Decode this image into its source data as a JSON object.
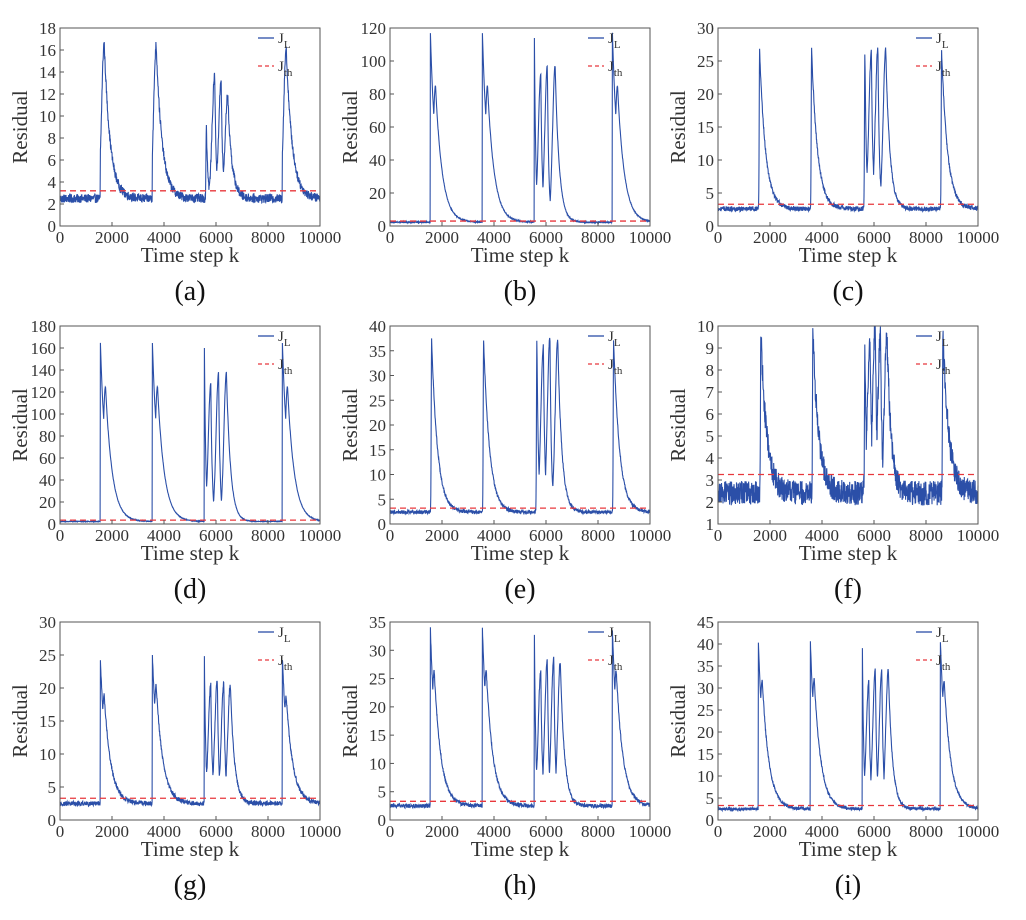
{
  "figure": {
    "colors": {
      "residual": "#2b4fa8",
      "threshold": "#e8383d",
      "axis": "#555555"
    }
  },
  "chart_data": [
    {
      "type": "line",
      "panel": "(a)",
      "xlabel": "Time step k",
      "ylabel": "Residual",
      "xlim": [
        0,
        10000
      ],
      "ylim": [
        0,
        18
      ],
      "xticks": [
        0,
        2000,
        4000,
        6000,
        8000,
        10000
      ],
      "yticks": [
        0,
        2,
        4,
        6,
        8,
        10,
        12,
        14,
        16,
        18
      ],
      "legend": {
        "placement": "top-right",
        "entries": [
          {
            "main": "J",
            "sub": "L"
          },
          {
            "main": "J",
            "sub": "th"
          }
        ]
      },
      "series": [
        {
          "name": "J_L",
          "baseline": 2.5,
          "noise": 0.4,
          "fault_starts": [
            1550,
            3550,
            5550,
            8550
          ],
          "peaks": [
            [
              1700,
              16.7
            ],
            [
              3700,
              16.5
            ],
            [
              5630,
              9.3
            ],
            [
              5950,
              13.7
            ],
            [
              6200,
              13.2
            ],
            [
              6450,
              11.9
            ],
            [
              8700,
              16.2
            ]
          ]
        },
        {
          "name": "J_th",
          "values": [
            3.2
          ]
        }
      ]
    },
    {
      "type": "line",
      "panel": "(b)",
      "xlabel": "Time step k",
      "ylabel": "Residual",
      "xlim": [
        0,
        10000
      ],
      "ylim": [
        0,
        120
      ],
      "xticks": [
        0,
        2000,
        4000,
        6000,
        8000,
        10000
      ],
      "yticks": [
        0,
        20,
        40,
        60,
        80,
        100,
        120
      ],
      "legend": {
        "placement": "top-right",
        "entries": [
          {
            "main": "J",
            "sub": "L"
          },
          {
            "main": "J",
            "sub": "th"
          }
        ]
      },
      "series": [
        {
          "name": "J_L",
          "baseline": 2.3,
          "noise": 0.3,
          "fault_starts": [
            1550,
            3550,
            5550,
            8550
          ],
          "peaks": [
            [
              1550,
              118
            ],
            [
              1750,
              85
            ],
            [
              3550,
              118
            ],
            [
              3750,
              85
            ],
            [
              5550,
              118
            ],
            [
              5800,
              92
            ],
            [
              6050,
              97
            ],
            [
              6350,
              97
            ],
            [
              8550,
              118
            ],
            [
              8750,
              85
            ]
          ]
        },
        {
          "name": "J_th",
          "values": [
            3.0
          ]
        }
      ]
    },
    {
      "type": "line",
      "panel": "(c)",
      "xlabel": "Time step k",
      "ylabel": "Residual",
      "xlim": [
        0,
        10000
      ],
      "ylim": [
        0,
        30
      ],
      "xticks": [
        0,
        2000,
        4000,
        6000,
        8000,
        10000
      ],
      "yticks": [
        0,
        5,
        10,
        15,
        20,
        25,
        30
      ],
      "legend": {
        "placement": "top-right",
        "entries": [
          {
            "main": "J",
            "sub": "L"
          },
          {
            "main": "J",
            "sub": "th"
          }
        ]
      },
      "series": [
        {
          "name": "J_L",
          "baseline": 2.6,
          "noise": 0.35,
          "fault_starts": [
            1550,
            3550,
            5550,
            8550
          ],
          "peaks": [
            [
              1600,
              26.8
            ],
            [
              3600,
              26.7
            ],
            [
              5650,
              26.3
            ],
            [
              5900,
              26.5
            ],
            [
              6150,
              27.1
            ],
            [
              6450,
              26.8
            ],
            [
              8600,
              26.5
            ]
          ]
        },
        {
          "name": "J_th",
          "values": [
            3.3
          ]
        }
      ]
    },
    {
      "type": "line",
      "panel": "(d)",
      "xlabel": "Time step k",
      "ylabel": "Residual",
      "xlim": [
        0,
        10000
      ],
      "ylim": [
        0,
        180
      ],
      "xticks": [
        0,
        2000,
        4000,
        6000,
        8000,
        10000
      ],
      "yticks": [
        0,
        20,
        40,
        60,
        80,
        100,
        120,
        140,
        160,
        180
      ],
      "legend": {
        "placement": "top-right",
        "entries": [
          {
            "main": "J",
            "sub": "L"
          },
          {
            "main": "J",
            "sub": "th"
          }
        ]
      },
      "series": [
        {
          "name": "J_L",
          "baseline": 2.3,
          "noise": 0.3,
          "fault_starts": [
            1550,
            3550,
            5550,
            8550
          ],
          "peaks": [
            [
              1550,
              166
            ],
            [
              1750,
              125
            ],
            [
              3550,
              166
            ],
            [
              3750,
              125
            ],
            [
              5550,
              166
            ],
            [
              5800,
              128
            ],
            [
              6100,
              138
            ],
            [
              6400,
              138
            ],
            [
              8550,
              166
            ],
            [
              8750,
              125
            ]
          ]
        },
        {
          "name": "J_th",
          "values": [
            3.5
          ]
        }
      ]
    },
    {
      "type": "line",
      "panel": "(e)",
      "xlabel": "Time step k",
      "ylabel": "Residual",
      "xlim": [
        0,
        10000
      ],
      "ylim": [
        0,
        40
      ],
      "xticks": [
        0,
        2000,
        4000,
        6000,
        8000,
        10000
      ],
      "yticks": [
        0,
        5,
        10,
        15,
        20,
        25,
        30,
        35,
        40
      ],
      "legend": {
        "placement": "top-right",
        "entries": [
          {
            "main": "J",
            "sub": "L"
          },
          {
            "main": "J",
            "sub": "th"
          }
        ]
      },
      "series": [
        {
          "name": "J_L",
          "baseline": 2.4,
          "noise": 0.35,
          "fault_starts": [
            1550,
            3550,
            5550,
            8550
          ],
          "peaks": [
            [
              1600,
              37.2
            ],
            [
              3600,
              37.2
            ],
            [
              5650,
              37.3
            ],
            [
              5900,
              36
            ],
            [
              6150,
              38
            ],
            [
              6450,
              37.2
            ],
            [
              8600,
              37.2
            ]
          ]
        },
        {
          "name": "J_th",
          "values": [
            3.2
          ]
        }
      ]
    },
    {
      "type": "line",
      "panel": "(f)",
      "xlabel": "Time step k",
      "ylabel": "Residual",
      "xlim": [
        0,
        10000
      ],
      "ylim": [
        1,
        10
      ],
      "xticks": [
        0,
        2000,
        4000,
        6000,
        8000,
        10000
      ],
      "yticks": [
        1,
        2,
        3,
        4,
        5,
        6,
        7,
        8,
        9,
        10
      ],
      "legend": {
        "placement": "top-right",
        "entries": [
          {
            "main": "J",
            "sub": "L"
          },
          {
            "main": "J",
            "sub": "th"
          }
        ]
      },
      "series": [
        {
          "name": "J_L",
          "baseline": 2.4,
          "noise": 0.55,
          "fault_starts": [
            1550,
            3550,
            5550,
            8550
          ],
          "peaks": [
            [
              1650,
              9.6
            ],
            [
              3650,
              9.6
            ],
            [
              5650,
              9.1
            ],
            [
              5850,
              9.4
            ],
            [
              6050,
              10
            ],
            [
              6250,
              9.7
            ],
            [
              6500,
              9.6
            ],
            [
              8650,
              9.6
            ]
          ]
        },
        {
          "name": "J_th",
          "values": [
            3.25
          ]
        }
      ]
    },
    {
      "type": "line",
      "panel": "(g)",
      "xlabel": "Time step k",
      "ylabel": "Residual",
      "xlim": [
        0,
        10000
      ],
      "ylim": [
        0,
        30
      ],
      "xticks": [
        0,
        2000,
        4000,
        6000,
        8000,
        10000
      ],
      "yticks": [
        0,
        5,
        10,
        15,
        20,
        25,
        30
      ],
      "legend": {
        "placement": "top-right",
        "entries": [
          {
            "main": "J",
            "sub": "L"
          },
          {
            "main": "J",
            "sub": "th"
          }
        ]
      },
      "series": [
        {
          "name": "J_L",
          "baseline": 2.5,
          "noise": 0.35,
          "fault_starts": [
            1550,
            3550,
            5550,
            8550
          ],
          "peaks": [
            [
              1550,
              24.5
            ],
            [
              1700,
              19
            ],
            [
              3550,
              25
            ],
            [
              3700,
              20.5
            ],
            [
              5550,
              25.3
            ],
            [
              5800,
              20.5
            ],
            [
              6050,
              21.3
            ],
            [
              6300,
              20.8
            ],
            [
              6550,
              20.5
            ],
            [
              8550,
              24.6
            ],
            [
              8700,
              18.8
            ]
          ]
        },
        {
          "name": "J_th",
          "values": [
            3.3
          ]
        }
      ]
    },
    {
      "type": "line",
      "panel": "(h)",
      "xlabel": "Time step k",
      "ylabel": "Residual",
      "xlim": [
        0,
        10000
      ],
      "ylim": [
        0,
        35
      ],
      "xticks": [
        0,
        2000,
        4000,
        6000,
        8000,
        10000
      ],
      "yticks": [
        0,
        5,
        10,
        15,
        20,
        25,
        30,
        35
      ],
      "legend": {
        "placement": "top-right",
        "entries": [
          {
            "main": "J",
            "sub": "L"
          },
          {
            "main": "J",
            "sub": "th"
          }
        ]
      },
      "series": [
        {
          "name": "J_L",
          "baseline": 2.5,
          "noise": 0.35,
          "fault_starts": [
            1550,
            3550,
            5550,
            8550
          ],
          "peaks": [
            [
              1550,
              34
            ],
            [
              1700,
              26.5
            ],
            [
              3550,
              34
            ],
            [
              3700,
              26.8
            ],
            [
              5550,
              34
            ],
            [
              5800,
              26.5
            ],
            [
              6050,
              28.5
            ],
            [
              6300,
              28.8
            ],
            [
              6550,
              28
            ],
            [
              8550,
              34
            ],
            [
              8700,
              26.5
            ]
          ]
        },
        {
          "name": "J_th",
          "values": [
            3.3
          ]
        }
      ]
    },
    {
      "type": "line",
      "panel": "(i)",
      "xlabel": "Time step k",
      "ylabel": "Residual",
      "xlim": [
        0,
        10000
      ],
      "ylim": [
        0,
        45
      ],
      "xticks": [
        0,
        2000,
        4000,
        6000,
        8000,
        10000
      ],
      "yticks": [
        0,
        5,
        10,
        15,
        20,
        25,
        30,
        35,
        40,
        45
      ],
      "legend": {
        "placement": "top-right",
        "entries": [
          {
            "main": "J",
            "sub": "L"
          },
          {
            "main": "J",
            "sub": "th"
          }
        ]
      },
      "series": [
        {
          "name": "J_L",
          "baseline": 2.5,
          "noise": 0.35,
          "fault_starts": [
            1550,
            3550,
            5550,
            8550
          ],
          "peaks": [
            [
              1550,
              40.6
            ],
            [
              1700,
              32
            ],
            [
              3550,
              40.6
            ],
            [
              3700,
              32.2
            ],
            [
              5550,
              40.4
            ],
            [
              5800,
              31.5
            ],
            [
              6050,
              34.3
            ],
            [
              6300,
              34.2
            ],
            [
              6550,
              34.1
            ],
            [
              8550,
              41
            ],
            [
              8700,
              31.8
            ]
          ]
        },
        {
          "name": "J_th",
          "values": [
            3.3
          ]
        }
      ]
    }
  ]
}
